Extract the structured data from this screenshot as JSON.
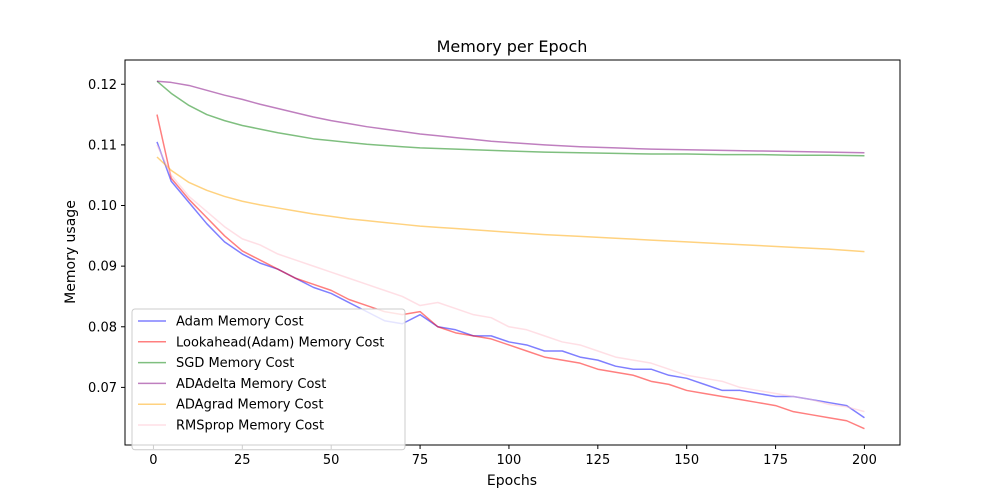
{
  "chart_data": {
    "type": "line",
    "title": "Memory per Epoch",
    "xlabel": "Epochs",
    "ylabel": "Memory usage",
    "xlim": [
      -8,
      210
    ],
    "ylim": [
      0.0605,
      0.124
    ],
    "xticks": [
      0,
      25,
      50,
      75,
      100,
      125,
      150,
      175,
      200
    ],
    "yticks": [
      0.07,
      0.08,
      0.09,
      0.1,
      0.11,
      0.12
    ],
    "ytick_labels": [
      "0.07",
      "0.08",
      "0.09",
      "0.10",
      "0.11",
      "0.12"
    ],
    "grid": false,
    "legend_position": "lower-left",
    "series": [
      {
        "name": "Adam Memory Cost",
        "color": "#0000ff",
        "x": [
          1,
          5,
          10,
          15,
          20,
          25,
          30,
          35,
          40,
          45,
          50,
          55,
          60,
          65,
          70,
          75,
          80,
          85,
          90,
          95,
          100,
          105,
          110,
          115,
          120,
          125,
          130,
          135,
          140,
          145,
          150,
          155,
          160,
          165,
          170,
          175,
          180,
          185,
          190,
          195,
          200
        ],
        "y": [
          0.1105,
          0.104,
          0.1005,
          0.097,
          0.094,
          0.092,
          0.0905,
          0.0895,
          0.088,
          0.0865,
          0.0855,
          0.084,
          0.0825,
          0.081,
          0.0805,
          0.082,
          0.08,
          0.0795,
          0.0785,
          0.0785,
          0.0775,
          0.077,
          0.076,
          0.076,
          0.075,
          0.0745,
          0.0735,
          0.073,
          0.073,
          0.072,
          0.0715,
          0.0705,
          0.0695,
          0.0695,
          0.069,
          0.0685,
          0.0685,
          0.068,
          0.0675,
          0.067,
          0.065
        ]
      },
      {
        "name": "Lookahead(Adam) Memory Cost",
        "color": "#ff0000",
        "x": [
          1,
          5,
          10,
          15,
          20,
          25,
          30,
          35,
          40,
          45,
          50,
          55,
          60,
          65,
          70,
          75,
          80,
          85,
          90,
          95,
          100,
          105,
          110,
          115,
          120,
          125,
          130,
          135,
          140,
          145,
          150,
          155,
          160,
          165,
          170,
          175,
          180,
          185,
          190,
          195,
          200
        ],
        "y": [
          0.115,
          0.1045,
          0.101,
          0.098,
          0.095,
          0.0925,
          0.091,
          0.0895,
          0.088,
          0.087,
          0.086,
          0.0845,
          0.0835,
          0.0825,
          0.082,
          0.0825,
          0.08,
          0.079,
          0.0785,
          0.078,
          0.077,
          0.076,
          0.075,
          0.0745,
          0.074,
          0.073,
          0.0725,
          0.072,
          0.071,
          0.0705,
          0.0695,
          0.069,
          0.0685,
          0.068,
          0.0675,
          0.067,
          0.066,
          0.0655,
          0.065,
          0.0645,
          0.0632
        ]
      },
      {
        "name": "SGD Memory Cost",
        "color": "#008000",
        "x": [
          1,
          5,
          10,
          15,
          20,
          25,
          30,
          35,
          40,
          45,
          50,
          55,
          60,
          65,
          70,
          75,
          80,
          85,
          90,
          95,
          100,
          110,
          120,
          130,
          140,
          150,
          160,
          170,
          180,
          190,
          200
        ],
        "y": [
          0.1205,
          0.1185,
          0.1165,
          0.115,
          0.114,
          0.1132,
          0.1126,
          0.112,
          0.1115,
          0.111,
          0.1107,
          0.1104,
          0.1101,
          0.1099,
          0.1097,
          0.1095,
          0.1094,
          0.1093,
          0.1092,
          0.1091,
          0.109,
          0.1088,
          0.1087,
          0.1086,
          0.1085,
          0.1085,
          0.1084,
          0.1084,
          0.1083,
          0.1083,
          0.1082
        ]
      },
      {
        "name": "ADAdelta Memory Cost",
        "color": "#800080",
        "x": [
          1,
          5,
          10,
          15,
          20,
          25,
          30,
          35,
          40,
          45,
          50,
          55,
          60,
          65,
          70,
          75,
          80,
          85,
          90,
          95,
          100,
          110,
          120,
          130,
          140,
          150,
          160,
          170,
          180,
          190,
          200
        ],
        "y": [
          0.1205,
          0.1203,
          0.1198,
          0.119,
          0.1182,
          0.1175,
          0.1167,
          0.116,
          0.1153,
          0.1146,
          0.114,
          0.1135,
          0.113,
          0.1126,
          0.1122,
          0.1118,
          0.1115,
          0.1112,
          0.1109,
          0.1106,
          0.1104,
          0.11,
          0.1097,
          0.1095,
          0.1093,
          0.1092,
          0.1091,
          0.109,
          0.1089,
          0.1088,
          0.1087
        ]
      },
      {
        "name": "ADAgrad Memory Cost",
        "color": "#ffa500",
        "x": [
          1,
          5,
          10,
          15,
          20,
          25,
          30,
          35,
          40,
          45,
          50,
          55,
          60,
          65,
          70,
          75,
          80,
          85,
          90,
          95,
          100,
          110,
          120,
          130,
          140,
          150,
          160,
          170,
          180,
          190,
          200
        ],
        "y": [
          0.108,
          0.1058,
          0.1038,
          0.1025,
          0.1015,
          0.1007,
          0.1001,
          0.0996,
          0.0991,
          0.0986,
          0.0982,
          0.0978,
          0.0975,
          0.0972,
          0.0969,
          0.0966,
          0.0964,
          0.0962,
          0.096,
          0.0958,
          0.0956,
          0.0952,
          0.0949,
          0.0946,
          0.0943,
          0.094,
          0.0937,
          0.0934,
          0.0931,
          0.0928,
          0.0924
        ]
      },
      {
        "name": "RMSprop Memory Cost",
        "color": "#ffc0cb",
        "x": [
          1,
          5,
          10,
          15,
          20,
          25,
          30,
          35,
          40,
          45,
          50,
          55,
          60,
          65,
          70,
          75,
          80,
          85,
          90,
          95,
          100,
          105,
          110,
          115,
          120,
          125,
          130,
          135,
          140,
          145,
          150,
          155,
          160,
          165,
          170,
          175,
          180,
          185,
          190,
          195,
          200
        ],
        "y": [
          0.11,
          0.105,
          0.1015,
          0.099,
          0.0965,
          0.0945,
          0.0935,
          0.092,
          0.091,
          0.09,
          0.089,
          0.088,
          0.087,
          0.086,
          0.085,
          0.0835,
          0.084,
          0.083,
          0.082,
          0.0815,
          0.08,
          0.0795,
          0.0785,
          0.0775,
          0.077,
          0.076,
          0.075,
          0.0745,
          0.074,
          0.073,
          0.072,
          0.0715,
          0.071,
          0.07,
          0.0695,
          0.069,
          0.0685,
          0.068,
          0.0672,
          0.0668,
          0.066
        ]
      }
    ]
  }
}
